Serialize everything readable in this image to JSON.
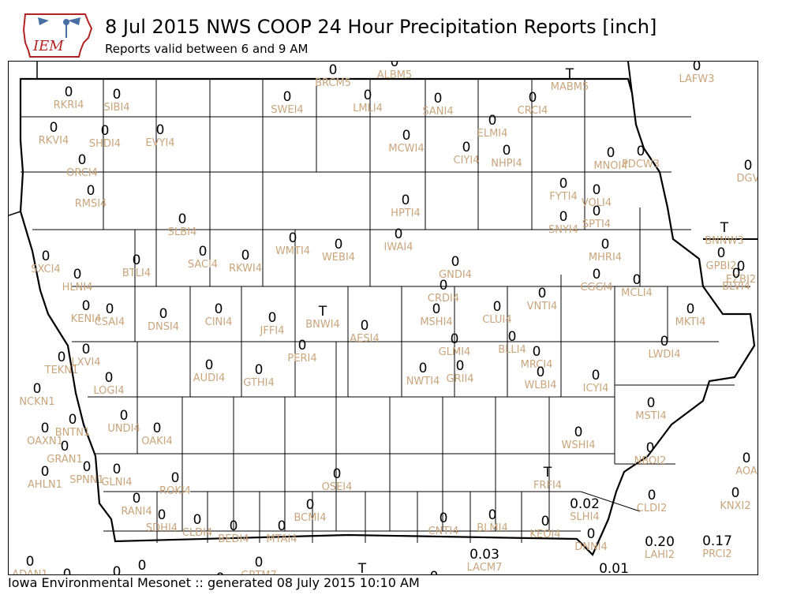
{
  "header": {
    "logo_text": "IEM",
    "title": "8 Jul 2015 NWS COOP 24 Hour Precipitation Reports [inch]",
    "subtitle": "Reports valid between 6 and 9 AM"
  },
  "footer": {
    "credit": "Iowa Environmental Mesonet :: generated 08 July 2015 10:10 AM"
  },
  "colors": {
    "station_label": "#c9a57c",
    "value": "#000000",
    "boundary": "#000000"
  },
  "stations": [
    {
      "id": "BRCM5",
      "value": "0"
    },
    {
      "id": "ALBM5",
      "value": "0"
    },
    {
      "id": "MABM5",
      "value": "T"
    },
    {
      "id": "LAFW3",
      "value": "0"
    },
    {
      "id": "RKRI4",
      "value": "0"
    },
    {
      "id": "SIBI4",
      "value": "0"
    },
    {
      "id": "SWEI4",
      "value": "0"
    },
    {
      "id": "LMLI4",
      "value": "0"
    },
    {
      "id": "SANI4",
      "value": "0"
    },
    {
      "id": "CRCI4",
      "value": "0"
    },
    {
      "id": "RKVI4",
      "value": "0"
    },
    {
      "id": "SHDI4",
      "value": "0"
    },
    {
      "id": "EVYI4",
      "value": "0"
    },
    {
      "id": "MCWI4",
      "value": "0"
    },
    {
      "id": "ELMI4",
      "value": "0"
    },
    {
      "id": "CIYI4",
      "value": "0"
    },
    {
      "id": "NHPI4",
      "value": "0"
    },
    {
      "id": "MNOI4",
      "value": "0"
    },
    {
      "id": "PDCW3",
      "value": "0"
    },
    {
      "id": "ORCI4",
      "value": "0"
    },
    {
      "id": "DGV",
      "value": "0"
    },
    {
      "id": "RMSI4",
      "value": "0"
    },
    {
      "id": "HPTI4",
      "value": "0"
    },
    {
      "id": "FYTI4",
      "value": "0"
    },
    {
      "id": "VOLI4",
      "value": "0"
    },
    {
      "id": "SLBI4",
      "value": "0"
    },
    {
      "id": "SNYI4",
      "value": "0"
    },
    {
      "id": "SPTI4",
      "value": "0"
    },
    {
      "id": "BNNW3",
      "value": "T"
    },
    {
      "id": "IWAI4",
      "value": "0"
    },
    {
      "id": "WMTI4",
      "value": "0"
    },
    {
      "id": "WEBI4",
      "value": "0"
    },
    {
      "id": "SACI4",
      "value": "0"
    },
    {
      "id": "RKWI4",
      "value": "0"
    },
    {
      "id": "MHRI4",
      "value": "0"
    },
    {
      "id": "GPBI2",
      "value": "0"
    },
    {
      "id": "SXCI4",
      "value": "0"
    },
    {
      "id": "BTLI4",
      "value": "0"
    },
    {
      "id": "GNDI4",
      "value": "0"
    },
    {
      "id": "EZBI2",
      "value": "0"
    },
    {
      "id": "HLNI4",
      "value": "0"
    },
    {
      "id": "CGGI4",
      "value": "0"
    },
    {
      "id": "MCLI4",
      "value": "0"
    },
    {
      "id": "BLVI4",
      "value": "0"
    },
    {
      "id": "CRDI4",
      "value": "0"
    },
    {
      "id": "VNTI4",
      "value": "0"
    },
    {
      "id": "KENI4",
      "value": "0"
    },
    {
      "id": "CSAI4",
      "value": "0"
    },
    {
      "id": "DNSI4",
      "value": "0"
    },
    {
      "id": "CINI4",
      "value": "0"
    },
    {
      "id": "JFFI4",
      "value": "0"
    },
    {
      "id": "BNWI4",
      "value": "T"
    },
    {
      "id": "MSHI4",
      "value": "0"
    },
    {
      "id": "CLUI4",
      "value": "0"
    },
    {
      "id": "MKTI4",
      "value": "0"
    },
    {
      "id": "AESI4",
      "value": "0"
    },
    {
      "id": "LXVI4",
      "value": "0"
    },
    {
      "id": "PERI4",
      "value": "0"
    },
    {
      "id": "GLMI4",
      "value": "0"
    },
    {
      "id": "BLLI4",
      "value": "0"
    },
    {
      "id": "LWDI4",
      "value": "0"
    },
    {
      "id": "TEKN1",
      "value": "0"
    },
    {
      "id": "MRCI4",
      "value": "0"
    },
    {
      "id": "NWTI4",
      "value": "0"
    },
    {
      "id": "GRII4",
      "value": "0"
    },
    {
      "id": "AUDI4",
      "value": "0"
    },
    {
      "id": "GTHI4",
      "value": "0"
    },
    {
      "id": "WLBI4",
      "value": "0"
    },
    {
      "id": "ICYI4",
      "value": "0"
    },
    {
      "id": "LOGI4",
      "value": "0"
    },
    {
      "id": "NCKN1",
      "value": "0"
    },
    {
      "id": "MSTI4",
      "value": "0"
    },
    {
      "id": "UNDI4",
      "value": "0"
    },
    {
      "id": "BNTN1",
      "value": "0"
    },
    {
      "id": "OAKI4",
      "value": "0"
    },
    {
      "id": "OAXN1",
      "value": "0"
    },
    {
      "id": "WSHI4",
      "value": "0"
    },
    {
      "id": "GRAN1",
      "value": "0"
    },
    {
      "id": "NBOI2",
      "value": "0"
    },
    {
      "id": "AOA",
      "value": "0"
    },
    {
      "id": "AHLN1",
      "value": "0"
    },
    {
      "id": "SPNN1",
      "value": "0"
    },
    {
      "id": "GLNI4",
      "value": "0"
    },
    {
      "id": "OSEI4",
      "value": "0"
    },
    {
      "id": "FRFI4",
      "value": "T"
    },
    {
      "id": "ROKI4",
      "value": "0"
    },
    {
      "id": "KNXI2",
      "value": "0"
    },
    {
      "id": "CLDI2",
      "value": "0"
    },
    {
      "id": "RANI4",
      "value": "0"
    },
    {
      "id": "SLHI4",
      "value": "0.02"
    },
    {
      "id": "BCMI4",
      "value": "0"
    },
    {
      "id": "BLMI4",
      "value": "0"
    },
    {
      "id": "SDHI4",
      "value": "0"
    },
    {
      "id": "CLDI4",
      "value": "0"
    },
    {
      "id": "BEDI4",
      "value": "0"
    },
    {
      "id": "MTAI4",
      "value": "0"
    },
    {
      "id": "CNTI4",
      "value": "0"
    },
    {
      "id": "KEOI4",
      "value": "0"
    },
    {
      "id": "DNNI4",
      "value": "0"
    },
    {
      "id": "LAHI2",
      "value": "0.20"
    },
    {
      "id": "PRCI2",
      "value": "0.17"
    },
    {
      "id": "LACM7",
      "value": "0.03"
    },
    {
      "id": "ADAN1",
      "value": "0"
    },
    {
      "id": "GRTM7",
      "value": "0"
    },
    {
      "id": "EDGE1",
      "value": "0"
    },
    {
      "id": "EDGE2",
      "value": "0"
    },
    {
      "id": "EDGE3",
      "value": "0"
    },
    {
      "id": "EDGE4",
      "value": "T"
    },
    {
      "id": "EDGE5",
      "value": "0"
    },
    {
      "id": "EDGE6",
      "value": "0.01"
    },
    {
      "id": "EDGE7",
      "value": "0"
    }
  ]
}
